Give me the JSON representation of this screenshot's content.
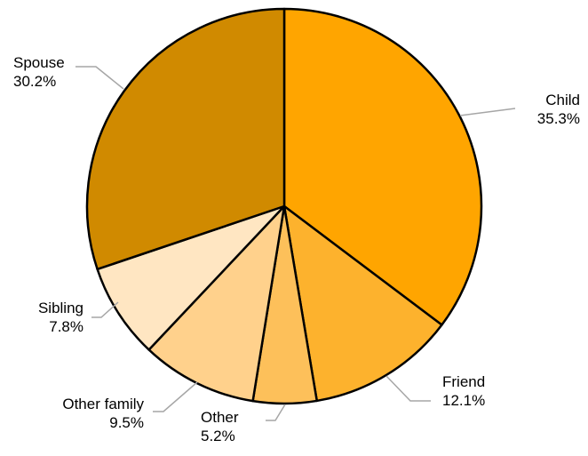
{
  "chart_data": {
    "type": "pie",
    "title": "",
    "slices": [
      {
        "label": "Child",
        "value": 35.3,
        "value_label": "35.3%",
        "color": "#FFA500"
      },
      {
        "label": "Friend",
        "value": 12.1,
        "value_label": "12.1%",
        "color": "#FDB22D"
      },
      {
        "label": "Other",
        "value": 5.2,
        "value_label": "5.2%",
        "color": "#FDC05A"
      },
      {
        "label": "Other family",
        "value": 9.5,
        "value_label": "9.5%",
        "color": "#FFD18C"
      },
      {
        "label": "Sibling",
        "value": 7.8,
        "value_label": "7.8%",
        "color": "#FFE6C2"
      },
      {
        "label": "Spouse",
        "value": 30.2,
        "value_label": "30.2%",
        "color": "#D08A00"
      }
    ],
    "start_angle": "12 o'clock",
    "direction": "clockwise",
    "legend": "none",
    "data_labels": "outside with leader lines"
  }
}
